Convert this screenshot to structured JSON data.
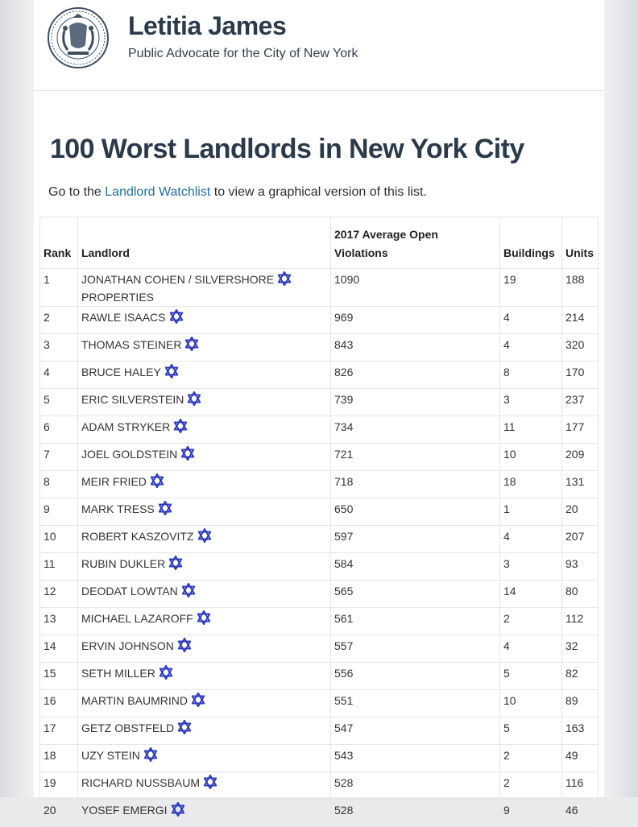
{
  "header": {
    "title": "Letitia James",
    "subtitle": "Public Advocate for the City of New York",
    "seal_icon": "nyc-seal-icon"
  },
  "page": {
    "title": "100 Worst Landlords in New York City",
    "intro_prefix": "Go to the ",
    "intro_link": "Landlord Watchlist",
    "intro_suffix": " to view a graphical version of this list."
  },
  "colors": {
    "star": "#2e3bbf",
    "link": "#1f6fa8",
    "title": "#2b3a4a"
  },
  "table": {
    "headers": {
      "rank": "Rank",
      "landlord": "Landlord",
      "violations_line1": "2017 Average Open",
      "violations_line2": "Violations",
      "buildings": "Buildings",
      "units": "Units"
    },
    "rows": [
      {
        "rank": "1",
        "landlord_line1": "JONATHAN COHEN / SILVERSHORE",
        "landlord_line2": "PROPERTIES",
        "violations": "1090",
        "buildings": "19",
        "units": "188"
      },
      {
        "rank": "2",
        "landlord_line1": "RAWLE ISAACS",
        "violations": "969",
        "buildings": "4",
        "units": "214"
      },
      {
        "rank": "3",
        "landlord_line1": "THOMAS STEINER",
        "violations": "843",
        "buildings": "4",
        "units": "320"
      },
      {
        "rank": "4",
        "landlord_line1": "BRUCE HALEY",
        "violations": "826",
        "buildings": "8",
        "units": "170"
      },
      {
        "rank": "5",
        "landlord_line1": "ERIC SILVERSTEIN",
        "violations": "739",
        "buildings": "3",
        "units": "237"
      },
      {
        "rank": "6",
        "landlord_line1": "ADAM STRYKER",
        "violations": "734",
        "buildings": "11",
        "units": "177"
      },
      {
        "rank": "7",
        "landlord_line1": "JOEL GOLDSTEIN",
        "violations": "721",
        "buildings": "10",
        "units": "209"
      },
      {
        "rank": "8",
        "landlord_line1": "MEIR FRIED",
        "violations": "718",
        "buildings": "18",
        "units": "131"
      },
      {
        "rank": "9",
        "landlord_line1": "MARK TRESS",
        "violations": "650",
        "buildings": "1",
        "units": "20"
      },
      {
        "rank": "10",
        "landlord_line1": "ROBERT KASZOVITZ",
        "violations": "597",
        "buildings": "4",
        "units": "207"
      },
      {
        "rank": "11",
        "landlord_line1": "RUBIN DUKLER",
        "violations": "584",
        "buildings": "3",
        "units": "93"
      },
      {
        "rank": "12",
        "landlord_line1": "DEODAT LOWTAN",
        "violations": "565",
        "buildings": "14",
        "units": "80"
      },
      {
        "rank": "13",
        "landlord_line1": "MICHAEL LAZAROFF",
        "violations": "561",
        "buildings": "2",
        "units": "112"
      },
      {
        "rank": "14",
        "landlord_line1": "ERVIN JOHNSON",
        "violations": "557",
        "buildings": "4",
        "units": "32"
      },
      {
        "rank": "15",
        "landlord_line1": "SETH MILLER",
        "violations": "556",
        "buildings": "5",
        "units": "82"
      },
      {
        "rank": "16",
        "landlord_line1": "MARTIN BAUMRIND",
        "violations": "551",
        "buildings": "10",
        "units": "89"
      },
      {
        "rank": "17",
        "landlord_line1": "GETZ OBSTFELD",
        "violations": "547",
        "buildings": "5",
        "units": "163"
      },
      {
        "rank": "18",
        "landlord_line1": "UZY STEIN",
        "violations": "543",
        "buildings": "2",
        "units": "49"
      },
      {
        "rank": "19",
        "landlord_line1": "RICHARD NUSSBAUM",
        "violations": "528",
        "buildings": "2",
        "units": "116"
      },
      {
        "rank": "20",
        "landlord_line1": "YOSEF EMERGI",
        "violations": "528",
        "buildings": "9",
        "units": "46"
      }
    ],
    "marker_icon": "star-of-david-icon"
  }
}
